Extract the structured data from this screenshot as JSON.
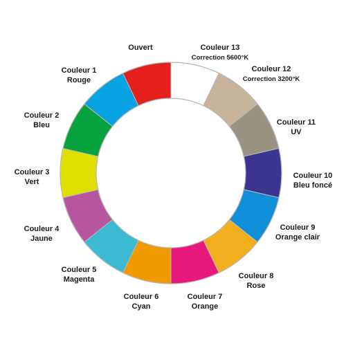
{
  "wheel": {
    "segments": [
      {
        "id": "open",
        "color": "#ffffff",
        "line1": "Ouvert",
        "line2": ""
      },
      {
        "id": "color-13",
        "color": "#c8b49b",
        "line1": "Couleur 13",
        "line2": "Correction 5600°K"
      },
      {
        "id": "color-12",
        "color": "#9a9280",
        "line1": "Couleur 12",
        "line2": "Correction 3200°K"
      },
      {
        "id": "color-11",
        "color": "#3b3490",
        "line1": "Couleur 11",
        "line2": "UV"
      },
      {
        "id": "color-10",
        "color": "#0f8fd8",
        "line1": "Couleur 10",
        "line2": "Bleu foncé"
      },
      {
        "id": "color-9",
        "color": "#f2ae1d",
        "line1": "Couleur 9",
        "line2": "Orange clair"
      },
      {
        "id": "color-8",
        "color": "#e8197c",
        "line1": "Couleur 8",
        "line2": "Rose"
      },
      {
        "id": "color-7",
        "color": "#f19a00",
        "line1": "Couleur 7",
        "line2": "Orange"
      },
      {
        "id": "color-6",
        "color": "#3bbad2",
        "line1": "Couleur 6",
        "line2": "Cyan"
      },
      {
        "id": "color-5",
        "color": "#b5569f",
        "line1": "Couleur 5",
        "line2": "Magenta"
      },
      {
        "id": "color-4",
        "color": "#e0e000",
        "line1": "Couleur 4",
        "line2": "Jaune"
      },
      {
        "id": "color-3",
        "color": "#07a33e",
        "line1": "Couleur 3",
        "line2": "Vert"
      },
      {
        "id": "color-2",
        "color": "#07a2e2",
        "line1": "Couleur 2",
        "line2": "Bleu"
      },
      {
        "id": "color-1",
        "color": "#e3201b",
        "line1": "Couleur 1",
        "line2": "Rouge"
      }
    ],
    "ring_color": "#b8b8b8"
  }
}
